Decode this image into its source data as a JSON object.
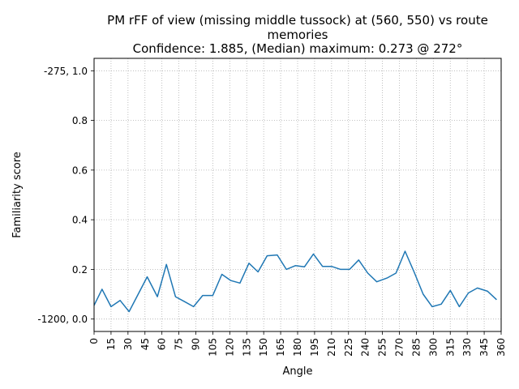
{
  "chart_data": {
    "type": "line",
    "title_lines": [
      "PM rFF of view (missing middle tussock) at (560, 550) vs route",
      "memories",
      "Confidence: 1.885, (Median) maximum: 0.273 @ 272°"
    ],
    "xlabel": "Angle",
    "ylabel": "Familiarity score",
    "xlim": [
      0,
      360
    ],
    "ylim": [
      -0.05,
      1.05
    ],
    "x_ticks": [
      0,
      15,
      30,
      45,
      60,
      75,
      90,
      105,
      120,
      135,
      150,
      165,
      180,
      195,
      210,
      225,
      240,
      255,
      270,
      285,
      300,
      315,
      330,
      345,
      360
    ],
    "y_ticks": [
      {
        "value": 0.0,
        "label": "-1200, 0.0"
      },
      {
        "value": 0.2,
        "label": "0.2"
      },
      {
        "value": 0.4,
        "label": "0.4"
      },
      {
        "value": 0.6,
        "label": "0.6"
      },
      {
        "value": 0.8,
        "label": "0.8"
      },
      {
        "value": 1.0,
        "label": "-275, 1.0"
      }
    ],
    "grid": true,
    "color": "#1f77b4",
    "x": [
      0,
      7,
      15,
      23,
      31,
      39,
      47,
      56,
      64,
      72,
      80,
      88,
      96,
      105,
      113,
      121,
      129,
      137,
      145,
      153,
      162,
      170,
      178,
      186,
      194,
      202,
      210,
      218,
      226,
      234,
      242,
      250,
      259,
      267,
      275,
      283,
      291,
      299,
      307,
      315,
      323,
      331,
      339,
      348,
      356
    ],
    "y": [
      0.055,
      0.12,
      0.05,
      0.075,
      0.03,
      0.1,
      0.17,
      0.09,
      0.22,
      0.09,
      0.07,
      0.05,
      0.095,
      0.095,
      0.18,
      0.155,
      0.145,
      0.225,
      0.19,
      0.255,
      0.258,
      0.2,
      0.215,
      0.21,
      0.262,
      0.212,
      0.212,
      0.2,
      0.2,
      0.238,
      0.185,
      0.15,
      0.165,
      0.185,
      0.273,
      0.19,
      0.1,
      0.05,
      0.06,
      0.115,
      0.05,
      0.105,
      0.125,
      0.112,
      0.078
    ]
  }
}
